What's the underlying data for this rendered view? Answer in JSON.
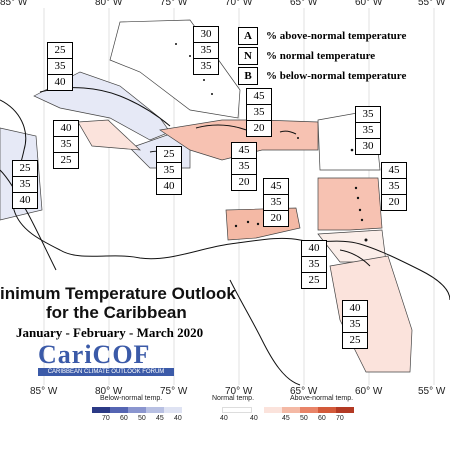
{
  "longitude_labels": [
    "85° W",
    "80° W",
    "75° W",
    "70° W",
    "65° W",
    "60° W",
    "55° W"
  ],
  "title_line1": "inimum Temperature Outlook",
  "title_line2": "for the Caribbean",
  "period": "January - February - March 2020",
  "logo": "CariCOF",
  "logo_sub": "CARIBBEAN CLIMATE OUTLOOK FORUM",
  "legend": {
    "a": {
      "key": "A",
      "text": "% above-normal temperature"
    },
    "n": {
      "key": "N",
      "text": "% normal temperature"
    },
    "b": {
      "key": "B",
      "text": "% below-normal temperature"
    }
  },
  "colorbar": {
    "below_label": "Below-normal temp.",
    "normal_label": "Normal temp.",
    "above_label": "Above-normal temp.",
    "below_ticks": [
      "70",
      "60",
      "50",
      "45",
      "40"
    ],
    "normal_ticks": [
      "40",
      "40"
    ],
    "above_ticks": [
      "45",
      "50",
      "60",
      "70"
    ],
    "below_colors": [
      "#2b3a86",
      "#5565b3",
      "#8a95cf",
      "#b8c0e3",
      "#dfe3f3"
    ],
    "above_colors": [
      "#fbe3dc",
      "#f4b9a5",
      "#e98468",
      "#d35a3a",
      "#b33a24"
    ]
  },
  "regions": [
    {
      "name": "cuba",
      "a": "25",
      "n": "35",
      "b": "40"
    },
    {
      "name": "bahamas",
      "a": "30",
      "n": "35",
      "b": "35"
    },
    {
      "name": "belize",
      "a": "40",
      "n": "35",
      "b": "25"
    },
    {
      "name": "central-america",
      "a": "25",
      "n": "35",
      "b": "40"
    },
    {
      "name": "jamaica",
      "a": "25",
      "n": "35",
      "b": "40"
    },
    {
      "name": "hispaniola",
      "a": "45",
      "n": "35",
      "b": "20"
    },
    {
      "name": "puerto-rico",
      "a": "45",
      "n": "35",
      "b": "20"
    },
    {
      "name": "barbados",
      "a": "35",
      "n": "35",
      "b": "30"
    },
    {
      "name": "lesser-antilles",
      "a": "45",
      "n": "35",
      "b": "20"
    },
    {
      "name": "abc-islands",
      "a": "45",
      "n": "35",
      "b": "20"
    },
    {
      "name": "trinidad",
      "a": "40",
      "n": "35",
      "b": "25"
    },
    {
      "name": "guianas",
      "a": "40",
      "n": "35",
      "b": "25"
    }
  ]
}
